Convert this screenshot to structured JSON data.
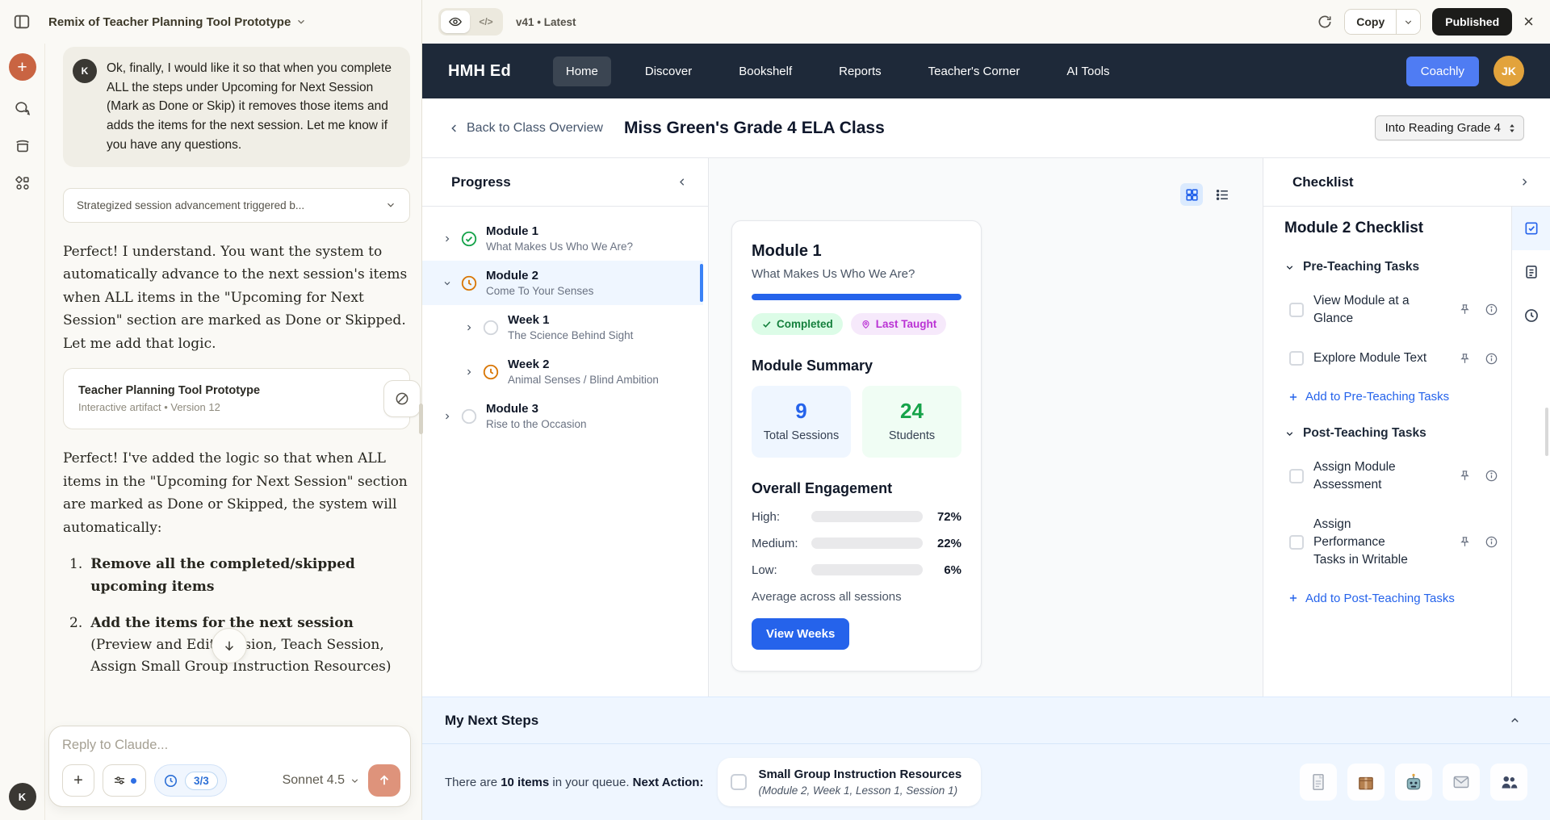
{
  "claude": {
    "sidebar_title": "Remix of Teacher Planning Tool Prototype",
    "avatar_letter": "K",
    "user_message": "Ok, finally, I would like it so that when you complete ALL the steps under Upcoming for Next Session (Mark as Done or Skip) it removes those items and adds the items for the next session. Let me know if you have any questions.",
    "thought_pill": "Strategized session advancement triggered b...",
    "response_1": "Perfect! I understand. You want the system to automatically advance to the next session's items when ALL items in the \"Upcoming for Next Session\" section are marked as Done or Skipped. Let me add that logic.",
    "artifact": {
      "title": "Teacher Planning Tool Prototype",
      "meta": "Interactive artifact  •  Version 12"
    },
    "response_2": "Perfect! I've added the logic so that when ALL items in the \"Upcoming for Next Session\" section are marked as Done or Skipped, the system will automatically:",
    "list": [
      {
        "bold": "Remove all the completed/skipped upcoming items",
        "rest": ""
      },
      {
        "bold": "Add the items for the next session",
        "rest": " (Preview and Edit Session, Teach Session, Assign Small Group Instruction Resources)"
      }
    ],
    "composer": {
      "placeholder": "Reply to Claude...",
      "counter": "3/3",
      "model": "Sonnet 4.5"
    }
  },
  "artifact_bar": {
    "version_text": "v41 • Latest",
    "copy_label": "Copy",
    "publish_label": "Published"
  },
  "nav": {
    "brand": "HMH Ed",
    "items": [
      "Home",
      "Discover",
      "Bookshelf",
      "Reports",
      "Teacher's Corner",
      "AI Tools"
    ],
    "coachly_label": "Coachly",
    "avatar_initials": "JK"
  },
  "class_header": {
    "back_label": "Back to Class Overview",
    "title": "Miss Green's Grade 4 ELA Class",
    "grade_selector": "Into Reading Grade 4"
  },
  "progress": {
    "panel_title": "Progress",
    "items": [
      {
        "title": "Module 1",
        "subtitle": "What Makes Us Who We Are?"
      },
      {
        "title": "Module 2",
        "subtitle": "Come To Your Senses"
      },
      {
        "title": "Week 1",
        "subtitle": "The Science Behind Sight"
      },
      {
        "title": "Week 2",
        "subtitle": "Animal Senses / Blind Ambition"
      },
      {
        "title": "Module 3",
        "subtitle": "Rise to the Occasion"
      }
    ]
  },
  "module_card": {
    "title": "Module 1",
    "subtitle": "What Makes Us Who We Are?",
    "progress_pct": 100,
    "badge_completed": "Completed",
    "badge_last_taught": "Last Taught",
    "summary_title": "Module Summary",
    "stats": [
      {
        "value": "9",
        "label": "Total Sessions"
      },
      {
        "value": "24",
        "label": "Students"
      }
    ],
    "engagement": {
      "title": "Overall Engagement",
      "rows": [
        {
          "label": "High:",
          "pct": 72,
          "display": "72%"
        },
        {
          "label": "Medium:",
          "pct": 22,
          "display": "22%"
        },
        {
          "label": "Low:",
          "pct": 6,
          "display": "6%"
        }
      ],
      "footnote": "Average across all sessions"
    },
    "cta_label": "View Weeks"
  },
  "checklist": {
    "panel_title": "Checklist",
    "title": "Module 2 Checklist",
    "sections": [
      {
        "label": "Pre-Teaching Tasks",
        "tasks": [
          "View Module at a Glance",
          "Explore Module Text"
        ],
        "add_label": "Add to Pre-Teaching Tasks"
      },
      {
        "label": "Post-Teaching Tasks",
        "tasks": [
          "Assign Module Assessment",
          "Assign Performance Tasks in Writable"
        ],
        "add_label": "Add to Post-Teaching Tasks"
      }
    ]
  },
  "next_steps": {
    "title": "My Next Steps",
    "queue_prefix": "There are ",
    "queue_count": "10 items",
    "queue_mid": " in your queue. ",
    "action_label": "Next Action:",
    "card": {
      "title": "Small Group Instruction Resources",
      "subtitle": "(Module 2, Week 1, Lesson 1, Session 1)"
    }
  }
}
